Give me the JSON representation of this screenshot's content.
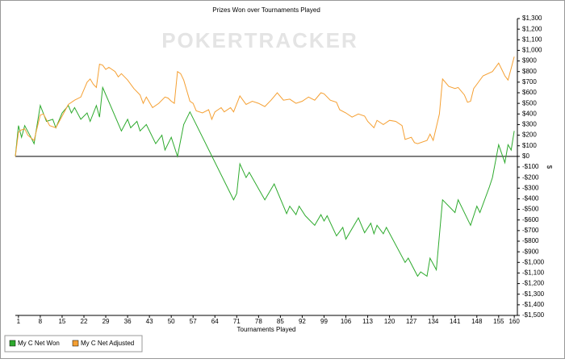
{
  "chart_data": {
    "type": "line",
    "title": "Prizes Won over Tournaments Played",
    "watermark": "POKERTRACKER",
    "x_label": "Tournaments Played",
    "y_label": "$",
    "xlim": [
      0,
      161
    ],
    "xticks": [
      1,
      8,
      15,
      22,
      29,
      36,
      43,
      50,
      57,
      64,
      71,
      78,
      85,
      92,
      99,
      106,
      113,
      120,
      127,
      134,
      141,
      148,
      155,
      160
    ],
    "ylim": [
      -1500,
      1300
    ],
    "yticks": [
      {
        "value": 1300,
        "label": "$1,300"
      },
      {
        "value": 1200,
        "label": "$1,200"
      },
      {
        "value": 1100,
        "label": "$1,100"
      },
      {
        "value": 1000,
        "label": "$1,000"
      },
      {
        "value": 900,
        "label": "$900"
      },
      {
        "value": 800,
        "label": "$800"
      },
      {
        "value": 700,
        "label": "$700"
      },
      {
        "value": 600,
        "label": "$600"
      },
      {
        "value": 500,
        "label": "$500"
      },
      {
        "value": 400,
        "label": "$400"
      },
      {
        "value": 300,
        "label": "$300"
      },
      {
        "value": 200,
        "label": "$200"
      },
      {
        "value": 100,
        "label": "$100"
      },
      {
        "value": 0,
        "label": "$0"
      },
      {
        "value": -100,
        "label": "-$100"
      },
      {
        "value": -200,
        "label": "-$200"
      },
      {
        "value": -300,
        "label": "-$300"
      },
      {
        "value": -400,
        "label": "-$400"
      },
      {
        "value": -500,
        "label": "-$500"
      },
      {
        "value": -600,
        "label": "-$600"
      },
      {
        "value": -700,
        "label": "-$700"
      },
      {
        "value": -800,
        "label": "-$800"
      },
      {
        "value": -900,
        "label": "-$900"
      },
      {
        "value": -1000,
        "label": "-$1,000"
      },
      {
        "value": -1100,
        "label": "-$1,100"
      },
      {
        "value": -1200,
        "label": "-$1,200"
      },
      {
        "value": -1300,
        "label": "-$1,300"
      },
      {
        "value": -1400,
        "label": "-$1,400"
      },
      {
        "value": -1500,
        "label": "-$1,500"
      }
    ],
    "zero_line": true,
    "series": [
      {
        "name": "My C Net Won",
        "color": "#2eaa2e",
        "x": [
          0,
          1,
          2,
          3,
          5,
          6,
          8,
          10,
          12,
          13,
          15,
          17,
          18,
          19,
          21,
          23,
          24,
          26,
          27,
          28,
          34,
          36,
          37,
          39,
          40,
          42,
          45,
          47,
          48,
          50,
          52,
          54,
          56,
          70,
          71,
          72,
          74,
          75,
          80,
          83,
          87,
          88,
          90,
          91,
          93,
          96,
          98,
          99,
          100,
          103,
          105,
          106,
          110,
          112,
          114,
          115,
          116,
          118,
          119,
          125,
          126,
          129,
          130,
          132,
          133,
          135,
          137,
          141,
          142,
          146,
          148,
          149,
          152,
          153,
          155,
          157,
          158,
          159,
          160
        ],
        "values": [
          0,
          290,
          180,
          290,
          180,
          120,
          480,
          330,
          350,
          270,
          410,
          480,
          410,
          460,
          350,
          410,
          330,
          480,
          370,
          650,
          240,
          350,
          270,
          330,
          240,
          300,
          120,
          200,
          60,
          180,
          0,
          300,
          420,
          -410,
          -350,
          -70,
          -200,
          -150,
          -410,
          -260,
          -540,
          -470,
          -550,
          -470,
          -560,
          -650,
          -550,
          -610,
          -560,
          -750,
          -670,
          -780,
          -580,
          -720,
          -630,
          -730,
          -650,
          -730,
          -670,
          -1000,
          -960,
          -1130,
          -1090,
          -1130,
          -960,
          -1070,
          -410,
          -530,
          -410,
          -650,
          -470,
          -530,
          -290,
          -200,
          110,
          -60,
          110,
          60,
          240
        ]
      },
      {
        "name": "My C Net Adjusted",
        "color": "#f5a033",
        "x": [
          0,
          1,
          2,
          3,
          4,
          6,
          8,
          9,
          11,
          13,
          15,
          17,
          19,
          21,
          23,
          24,
          25,
          26,
          27,
          28,
          29,
          30,
          32,
          33,
          34,
          36,
          38,
          40,
          41,
          42,
          44,
          46,
          48,
          49,
          50,
          51,
          52,
          53,
          54,
          56,
          57,
          58,
          60,
          62,
          63,
          64,
          66,
          67,
          69,
          70,
          72,
          74,
          76,
          78,
          80,
          82,
          84,
          86,
          88,
          90,
          92,
          94,
          96,
          98,
          99,
          101,
          103,
          104,
          106,
          108,
          110,
          112,
          113,
          115,
          116,
          118,
          120,
          122,
          124,
          125,
          127,
          128,
          129,
          132,
          133,
          134,
          136,
          137,
          139,
          141,
          142,
          144,
          145,
          146,
          147,
          148,
          150,
          153,
          155,
          156,
          157,
          158,
          159,
          160
        ],
        "values": [
          0,
          230,
          250,
          260,
          200,
          150,
          390,
          400,
          290,
          270,
          380,
          490,
          530,
          560,
          700,
          730,
          680,
          650,
          870,
          860,
          820,
          840,
          800,
          750,
          780,
          720,
          640,
          580,
          500,
          560,
          460,
          500,
          560,
          550,
          520,
          500,
          800,
          780,
          720,
          520,
          500,
          430,
          410,
          440,
          350,
          420,
          460,
          420,
          460,
          420,
          570,
          490,
          520,
          500,
          470,
          530,
          600,
          530,
          540,
          500,
          520,
          560,
          530,
          600,
          590,
          530,
          510,
          440,
          410,
          370,
          400,
          380,
          330,
          270,
          340,
          300,
          340,
          330,
          290,
          160,
          180,
          130,
          120,
          150,
          210,
          150,
          400,
          730,
          660,
          640,
          650,
          580,
          510,
          520,
          640,
          680,
          760,
          800,
          880,
          820,
          760,
          720,
          830,
          940
        ]
      }
    ],
    "legend": "bottom-left"
  }
}
